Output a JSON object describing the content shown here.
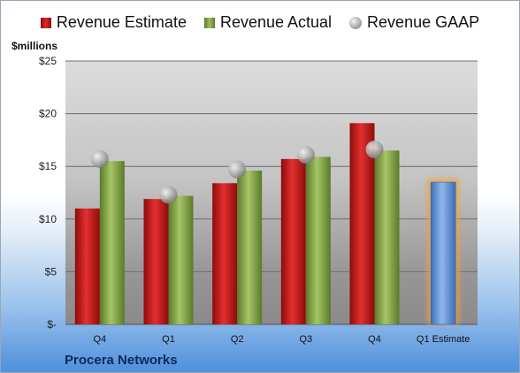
{
  "legend": {
    "estimate_label": "Revenue Estimate",
    "actual_label": "Revenue Actual",
    "gaap_label": "Revenue GAAP"
  },
  "footer": {
    "company": "Procera Networks"
  },
  "colors": {
    "estimate": "#d42020",
    "actual": "#8fb050",
    "gaap": "#a8a8a8",
    "forecast": "#6f9bd6",
    "forecast_glow": "#f0a040"
  },
  "chart_data": {
    "type": "bar",
    "title": "",
    "ylabel": "$millions",
    "ylim": [
      0,
      25
    ],
    "yticks": [
      0,
      5,
      10,
      15,
      20,
      25
    ],
    "ytick_labels": [
      "$-",
      "$5",
      "$10",
      "$15",
      "$20",
      "$25"
    ],
    "categories": [
      "Q4",
      "Q1",
      "Q2",
      "Q3",
      "Q4",
      "Q1 Estimate"
    ],
    "series": [
      {
        "name": "Revenue Estimate",
        "type": "bar",
        "values": [
          11.0,
          11.9,
          13.4,
          15.7,
          19.1,
          13.5
        ]
      },
      {
        "name": "Revenue Actual",
        "type": "bar",
        "values": [
          15.5,
          12.2,
          14.6,
          15.9,
          16.5,
          null
        ]
      },
      {
        "name": "Revenue GAAP",
        "type": "scatter",
        "values": [
          15.7,
          12.3,
          14.7,
          16.1,
          16.6,
          null
        ]
      }
    ],
    "grid": true,
    "legend_position": "top"
  }
}
